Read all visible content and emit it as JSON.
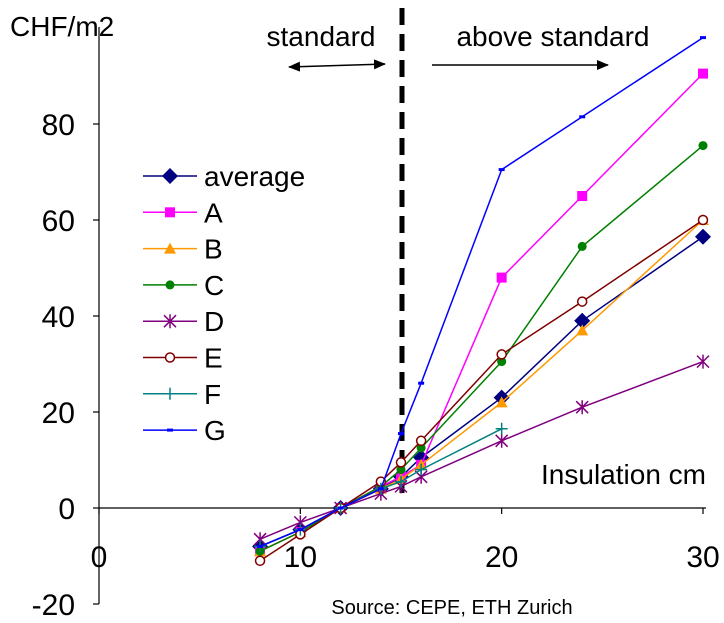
{
  "chart_data": {
    "type": "line",
    "y_unit_label": "CHF/m2",
    "x_axis_label": "Insulation cm",
    "source": "Source: CEPE, ETH Zurich",
    "xlim": [
      0,
      30
    ],
    "ylim": [
      -20,
      100
    ],
    "x_ticks": [
      0,
      10,
      20,
      30
    ],
    "y_ticks": [
      -20,
      0,
      20,
      40,
      60,
      80
    ],
    "grid": false,
    "legend_position": "left",
    "divider": {
      "x": 15,
      "style": "dashed",
      "left_label": "standard",
      "right_label": "above standard"
    },
    "series": [
      {
        "name": "average",
        "color": "#000080",
        "marker": "diamond",
        "x": [
          8,
          10,
          12,
          14,
          15,
          16,
          20,
          24,
          30
        ],
        "y": [
          -8,
          -4.5,
          0,
          4,
          6.5,
          10.5,
          23,
          39,
          56.5
        ]
      },
      {
        "name": "A",
        "color": "#ff00ff",
        "marker": "square",
        "x": [
          8,
          10,
          12,
          14,
          15,
          16,
          20,
          24,
          30
        ],
        "y": [
          -9,
          -5,
          0,
          4.5,
          6.5,
          9,
          48,
          65,
          90.5
        ]
      },
      {
        "name": "B",
        "color": "#ff9900",
        "marker": "triangle",
        "x": [
          8,
          10,
          12,
          14,
          15,
          16,
          20,
          24,
          30
        ],
        "y": [
          -9,
          -5,
          0,
          4,
          6,
          9,
          22,
          37,
          60
        ]
      },
      {
        "name": "C",
        "color": "#008000",
        "marker": "circle",
        "x": [
          8,
          10,
          12,
          14,
          15,
          16,
          20,
          24,
          30
        ],
        "y": [
          -9,
          -5,
          0,
          4.5,
          8,
          12.5,
          30.5,
          54.5,
          75.5
        ]
      },
      {
        "name": "D",
        "color": "#800080",
        "marker": "star",
        "x": [
          8,
          10,
          12,
          14,
          15,
          16,
          20,
          24,
          30
        ],
        "y": [
          -6.5,
          -3,
          0,
          3,
          4.5,
          6.5,
          14,
          21,
          30.5
        ]
      },
      {
        "name": "E",
        "color": "#800000",
        "marker": "open-circle",
        "x": [
          8,
          10,
          12,
          14,
          15,
          16,
          20,
          24,
          30
        ],
        "y": [
          -11,
          -5.5,
          0,
          5.5,
          9.5,
          14,
          32,
          43,
          60
        ]
      },
      {
        "name": "F",
        "color": "#008080",
        "marker": "plus",
        "x": [
          8,
          10,
          12,
          14,
          15,
          16,
          20
        ],
        "y": [
          -8,
          -4.5,
          0,
          4,
          5.5,
          8,
          16.5
        ]
      },
      {
        "name": "G",
        "color": "#0000ff",
        "marker": "dash",
        "x": [
          8,
          10,
          12,
          14,
          15,
          16,
          20,
          24,
          30
        ],
        "y": [
          -8,
          -4.5,
          0,
          4,
          15.5,
          26,
          70.5,
          81.5,
          98
        ]
      }
    ]
  }
}
